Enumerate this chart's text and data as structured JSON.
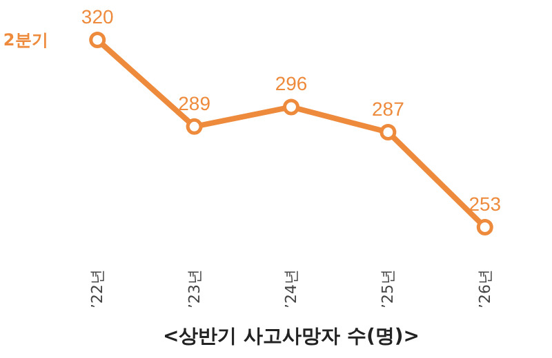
{
  "chart_data": {
    "type": "line",
    "title": "<상반기 사고사망자 수(명)>",
    "categories": [
      "’22년",
      "’23년",
      "’24년",
      "’25년",
      "’26년"
    ],
    "series": [
      {
        "name": "2분기",
        "color": "#ee8a3c",
        "values": [
          320,
          289,
          296,
          287,
          253
        ]
      }
    ],
    "data_labels": true,
    "marker": "circle",
    "grid": false
  }
}
